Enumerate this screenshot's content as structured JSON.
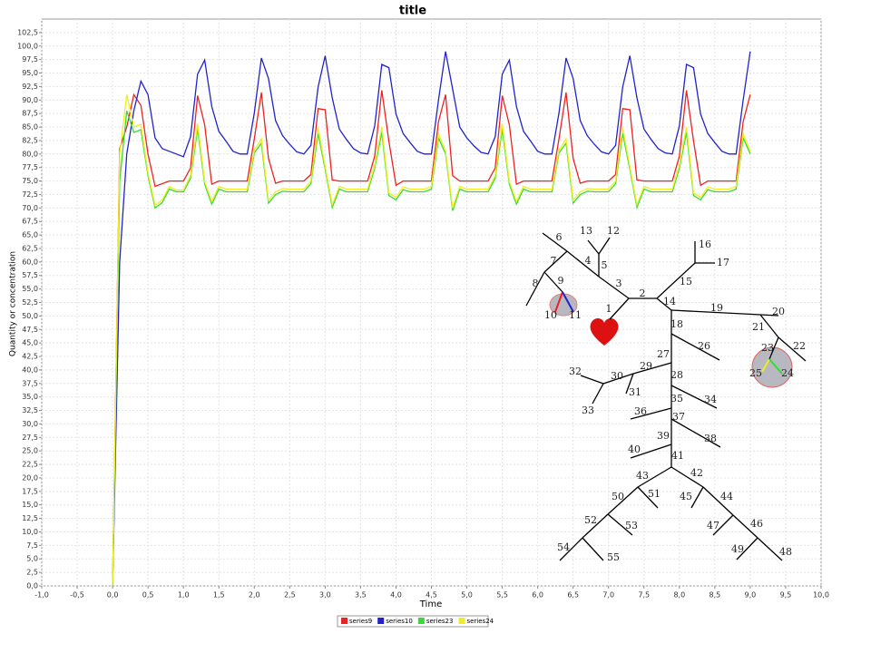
{
  "chart_data": {
    "type": "line",
    "title": "title",
    "x_label": "Time",
    "y_label": "Quantity or concentration",
    "xlim": [
      -1,
      10
    ],
    "ylim": [
      0,
      105
    ],
    "grid": true,
    "legend": "bottom",
    "xticks": [
      {
        "value": -1,
        "label": "-1,0"
      },
      {
        "value": -0.5,
        "label": "-0,5"
      },
      {
        "value": 0,
        "label": "0,0"
      },
      {
        "value": 0.5,
        "label": "0,5"
      },
      {
        "value": 1,
        "label": "1,0"
      },
      {
        "value": 1.5,
        "label": "1,5"
      },
      {
        "value": 2,
        "label": "2,0"
      },
      {
        "value": 2.5,
        "label": "2,5"
      },
      {
        "value": 3,
        "label": "3,0"
      },
      {
        "value": 3.5,
        "label": "3,5"
      },
      {
        "value": 4,
        "label": "4,0"
      },
      {
        "value": 4.5,
        "label": "4,5"
      },
      {
        "value": 5,
        "label": "5,0"
      },
      {
        "value": 5.5,
        "label": "5,5"
      },
      {
        "value": 6,
        "label": "6,0"
      },
      {
        "value": 6.5,
        "label": "6,5"
      },
      {
        "value": 7,
        "label": "7,0"
      },
      {
        "value": 7.5,
        "label": "7,5"
      },
      {
        "value": 8,
        "label": "8,0"
      },
      {
        "value": 8.5,
        "label": "8,5"
      },
      {
        "value": 9,
        "label": "9,0"
      },
      {
        "value": 9.5,
        "label": "9,5"
      },
      {
        "value": 10,
        "label": "10,0"
      }
    ],
    "yticks": [
      {
        "value": 0,
        "label": "0,0"
      },
      {
        "value": 2.5,
        "label": "2,5"
      },
      {
        "value": 5,
        "label": "5,0"
      },
      {
        "value": 7.5,
        "label": "7,5"
      },
      {
        "value": 10,
        "label": "10,0"
      },
      {
        "value": 12.5,
        "label": "12,5"
      },
      {
        "value": 15,
        "label": "15,0"
      },
      {
        "value": 17.5,
        "label": "17,5"
      },
      {
        "value": 20,
        "label": "20,0"
      },
      {
        "value": 22.5,
        "label": "22,5"
      },
      {
        "value": 25,
        "label": "25,0"
      },
      {
        "value": 27.5,
        "label": "27,5"
      },
      {
        "value": 30,
        "label": "30,0"
      },
      {
        "value": 32.5,
        "label": "32,5"
      },
      {
        "value": 35,
        "label": "35,0"
      },
      {
        "value": 37.5,
        "label": "37,5"
      },
      {
        "value": 40,
        "label": "40,0"
      },
      {
        "value": 42.5,
        "label": "42,5"
      },
      {
        "value": 45,
        "label": "45,0"
      },
      {
        "value": 47.5,
        "label": "47,5"
      },
      {
        "value": 50,
        "label": "50,0"
      },
      {
        "value": 52.5,
        "label": "52,5"
      },
      {
        "value": 55,
        "label": "55,0"
      },
      {
        "value": 57.5,
        "label": "57,5"
      },
      {
        "value": 60,
        "label": "60,0"
      },
      {
        "value": 62.5,
        "label": "62,5"
      },
      {
        "value": 65,
        "label": "65,0"
      },
      {
        "value": 67.5,
        "label": "67,5"
      },
      {
        "value": 70,
        "label": "70,0"
      },
      {
        "value": 72.5,
        "label": "72,5"
      },
      {
        "value": 75,
        "label": "75,0"
      },
      {
        "value": 77.5,
        "label": "77,5"
      },
      {
        "value": 80,
        "label": "80,0"
      },
      {
        "value": 82.5,
        "label": "82,5"
      },
      {
        "value": 85,
        "label": "85,0"
      },
      {
        "value": 87.5,
        "label": "87,5"
      },
      {
        "value": 90,
        "label": "90,0"
      },
      {
        "value": 92.5,
        "label": "92,5"
      },
      {
        "value": 95,
        "label": "95,0"
      },
      {
        "value": 97.5,
        "label": "97,5"
      },
      {
        "value": 100,
        "label": "100,0"
      },
      {
        "value": 102.5,
        "label": "102,5"
      }
    ],
    "x": [
      0,
      0.1,
      0.2,
      0.3,
      0.4,
      0.5,
      0.6,
      0.7,
      0.8,
      0.9,
      1,
      1.1,
      1.2,
      1.3,
      1.4,
      1.5,
      1.6,
      1.7,
      1.8,
      1.9,
      2,
      2.1,
      2.2,
      2.3,
      2.4,
      2.5,
      2.6,
      2.7,
      2.8,
      2.9,
      3,
      3.1,
      3.2,
      3.3,
      3.4,
      3.5,
      3.6,
      3.7,
      3.8,
      3.9,
      4,
      4.1,
      4.2,
      4.3,
      4.4,
      4.5,
      4.6,
      4.7,
      4.8,
      4.9,
      5,
      5.1,
      5.2,
      5.3,
      5.4,
      5.5,
      5.6,
      5.7,
      5.8,
      5.9,
      6,
      6.1,
      6.2,
      6.3,
      6.4,
      6.5,
      6.6,
      6.7,
      6.8,
      6.9,
      7,
      7.1,
      7.2,
      7.3,
      7.4,
      7.5,
      7.6,
      7.7,
      7.8,
      7.9,
      8,
      8.1,
      8.2,
      8.3,
      8.4,
      8.5,
      8.6,
      8.7,
      8.8,
      8.9,
      9
    ],
    "series": [
      {
        "name": "series9",
        "color": "#ee2222",
        "values": [
          0,
          81,
          85,
          91,
          89,
          80,
          74,
          74.5,
          75,
          75,
          75,
          77.4,
          90.8,
          85.4,
          74.4,
          75,
          75,
          75,
          75,
          75,
          82.8,
          91.4,
          79.2,
          74.6,
          75,
          75,
          75,
          75,
          76.2,
          88.4,
          88.2,
          75.2,
          75,
          75,
          75,
          75,
          75,
          79.6,
          91.8,
          82.4,
          74.2,
          75,
          75,
          75,
          75,
          75,
          86,
          91,
          76,
          75,
          75,
          75,
          75,
          75,
          77.4,
          90.8,
          85.4,
          74.4,
          75,
          75,
          75,
          75,
          75,
          82.8,
          91.4,
          79.2,
          74.6,
          75,
          75,
          75,
          75,
          76.2,
          88.4,
          88.2,
          75.2,
          75,
          75,
          75,
          75,
          75,
          79.6,
          91.8,
          82.4,
          74.2,
          75,
          75,
          75,
          75,
          75,
          86,
          91
        ]
      },
      {
        "name": "series10",
        "color": "#2222cc",
        "values": [
          0,
          60,
          80,
          88,
          93.5,
          91,
          83,
          81,
          80.5,
          80,
          79.5,
          83.2,
          94.8,
          97.4,
          88.8,
          84.2,
          82.4,
          80.5,
          80,
          80,
          87.6,
          97.8,
          94,
          86.2,
          83.4,
          81.8,
          80.4,
          80,
          81.6,
          92.4,
          98.2,
          90.4,
          84.6,
          82.7,
          81,
          80.2,
          80,
          85.2,
          96.6,
          96,
          87.4,
          83.8,
          82.1,
          80.5,
          80,
          80,
          90,
          99,
          92,
          85,
          83,
          81.5,
          80.3,
          80,
          83.2,
          94.8,
          97.4,
          88.8,
          84.2,
          82.4,
          80.5,
          80,
          80,
          87.6,
          97.8,
          94,
          86.2,
          83.4,
          81.8,
          80.4,
          80,
          81.6,
          92.4,
          98.2,
          90.4,
          84.6,
          82.7,
          81,
          80.2,
          80,
          85.2,
          96.6,
          96,
          87.4,
          83.8,
          82.1,
          80.5,
          80,
          80,
          90,
          99
        ]
      },
      {
        "name": "series23",
        "color": "#33dd33",
        "values": [
          0,
          75,
          88,
          84,
          84.5,
          76,
          70,
          71,
          73.5,
          73,
          73,
          75.5,
          84.6,
          74.4,
          70.7,
          73.5,
          73,
          73,
          73,
          73,
          80.2,
          82,
          70.9,
          72.5,
          73.1,
          73,
          73,
          73,
          74.5,
          83.8,
          77.2,
          70.1,
          73.5,
          73,
          73,
          73,
          73,
          77.4,
          84,
          72.3,
          71.5,
          73.4,
          73,
          73,
          73,
          73.5,
          83,
          80,
          69.5,
          73.5,
          73,
          73,
          73,
          73,
          75.5,
          84.6,
          74.4,
          70.7,
          73.5,
          73,
          73,
          73,
          73,
          80.2,
          82,
          70.9,
          72.5,
          73.1,
          73,
          73,
          73,
          74.5,
          83.8,
          77.2,
          70.1,
          73.5,
          73,
          73,
          73,
          73,
          77.4,
          84,
          72.3,
          71.5,
          73.4,
          73,
          73,
          73,
          73.5,
          83,
          80
        ]
      },
      {
        "name": "series24",
        "color": "#eeee22",
        "values": [
          0,
          80,
          91,
          85,
          85.5,
          76.5,
          70.5,
          71.5,
          74,
          73.3,
          73.3,
          76,
          85.6,
          74.9,
          71.2,
          74,
          73.5,
          73.5,
          73.5,
          73.5,
          80.7,
          82.8,
          71.4,
          73,
          73.6,
          73.5,
          73.5,
          73.5,
          75,
          84.8,
          77.7,
          70.6,
          74,
          73.5,
          73.5,
          73.5,
          73.5,
          77.9,
          85,
          72.8,
          72,
          73.9,
          73.5,
          73.5,
          73.5,
          74,
          83.8,
          80.5,
          70,
          74,
          73.5,
          73.5,
          73.5,
          73.5,
          76,
          85.6,
          74.9,
          71.2,
          74,
          73.5,
          73.5,
          73.5,
          73.5,
          80.7,
          82.8,
          71.4,
          73,
          73.6,
          73.5,
          73.5,
          73.5,
          75,
          84.8,
          77.7,
          70.6,
          74,
          73.5,
          73.5,
          73.5,
          73.5,
          77.9,
          85,
          72.8,
          72,
          73.9,
          73.5,
          73.5,
          73.5,
          74,
          83.8,
          80.5
        ]
      }
    ]
  },
  "tree": {
    "labels": [
      "1",
      "2",
      "3",
      "4",
      "5",
      "6",
      "7",
      "8",
      "9",
      "10",
      "11",
      "12",
      "13",
      "14",
      "15",
      "16",
      "17",
      "18",
      "19",
      "20",
      "21",
      "22",
      "23",
      "24",
      "25",
      "26",
      "27",
      "28",
      "29",
      "30",
      "31",
      "32",
      "33",
      "34",
      "35",
      "36",
      "37",
      "38",
      "39",
      "40",
      "41",
      "42",
      "43",
      "44",
      "45",
      "46",
      "47",
      "48",
      "49",
      "50",
      "51",
      "52",
      "53",
      "54",
      "55"
    ]
  }
}
